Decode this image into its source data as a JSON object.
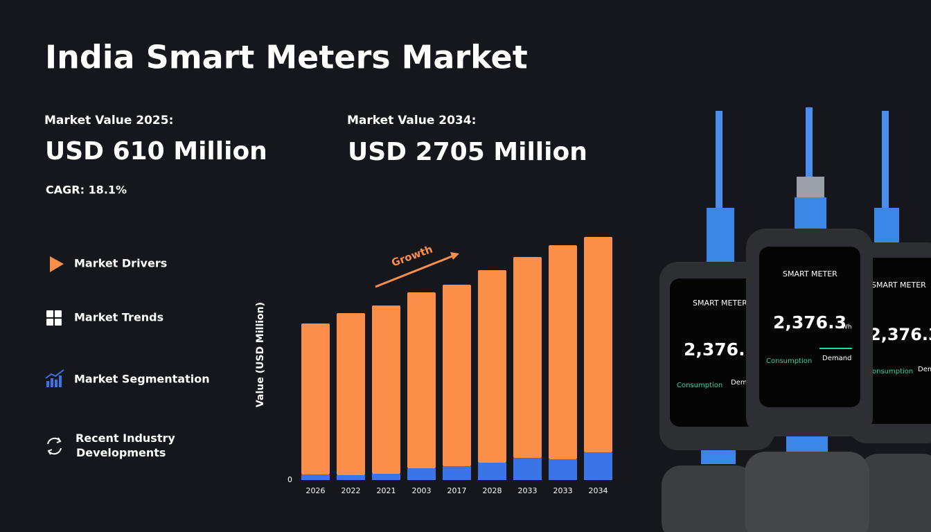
{
  "header": {
    "title": "India Smart Meters Market",
    "value_start_label": "Market Value 2025:",
    "value_start": "USD 610 Million",
    "value_end_label": "Market Value  2034:",
    "value_end": "USD 2705 Million",
    "cagr": "CAGR:  18.1%"
  },
  "menu": [
    "Market Drivers",
    "Market Trends",
    "Market Segmentation",
    "Recent Industry Developments"
  ],
  "device": {
    "label": "SMART METER",
    "reading": "2,376.3",
    "unit": "Wh",
    "left": "Consumption",
    "right": "Demand"
  },
  "chart_data": {
    "type": "stacked_bar",
    "y_label": "Value (USD Million)",
    "annotation": "Growth",
    "categories": [
      "2026",
      "2022",
      "2021",
      "2003",
      "2017",
      "2028",
      "2033",
      "2033",
      "2034"
    ],
    "series": [
      {
        "color": "#3b74e6",
        "values": [
          8,
          7,
          9,
          17,
          20,
          25,
          32,
          30,
          40
        ]
      },
      {
        "color": "#fb8f4a",
        "values": [
          218,
          234,
          243,
          254,
          262,
          278,
          290,
          309,
          311
        ]
      }
    ],
    "ylim": [
      0,
      400
    ],
    "yticks": [
      0
    ]
  }
}
